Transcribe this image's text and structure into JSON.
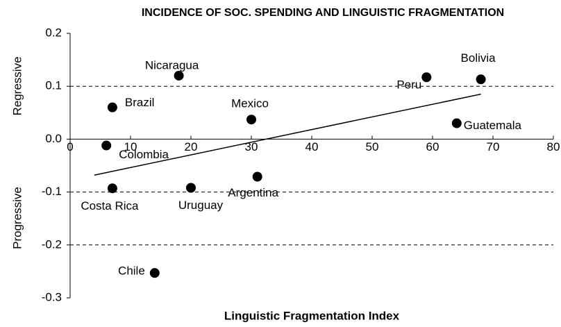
{
  "chart_data": {
    "type": "scatter",
    "title": "INCIDENCE OF SOC. SPENDING AND LINGUISTIC FRAGMENTATION",
    "x_label": "Linguistic Fragmentation Index",
    "y_annotations": [
      "Regressive",
      "Progressive"
    ],
    "labels": [
      "Nicaragua",
      "Brazil",
      "Mexico",
      "Peru",
      "Bolivia",
      "Guatemala",
      "Colombia",
      "Costa Rica",
      "Uruguay",
      "Argentina",
      "Chile"
    ],
    "x": [
      18,
      7,
      30,
      59,
      68,
      64,
      6,
      7,
      20,
      31,
      14
    ],
    "values": [
      0.12,
      0.06,
      0.037,
      0.117,
      0.113,
      0.03,
      -0.012,
      -0.093,
      -0.092,
      -0.071,
      -0.253
    ],
    "color": "#000000",
    "trendline": {
      "x": [
        4,
        68
      ],
      "y": [
        -0.068,
        0.085
      ]
    },
    "xlim": [
      0,
      80
    ],
    "xticks": [
      0,
      10,
      20,
      30,
      40,
      50,
      60,
      70,
      80
    ],
    "ylim": [
      -0.3,
      0.2
    ],
    "yticks": [
      {
        "value": -0.3,
        "label": "-0.3"
      },
      {
        "value": -0.2,
        "label": "-0.2"
      },
      {
        "value": -0.1,
        "label": "-0.1"
      },
      {
        "value": 0,
        "label": "0.0"
      },
      {
        "value": 0.1,
        "label": "0.1"
      },
      {
        "value": 0.2,
        "label": "0.2"
      }
    ],
    "grid": true
  }
}
